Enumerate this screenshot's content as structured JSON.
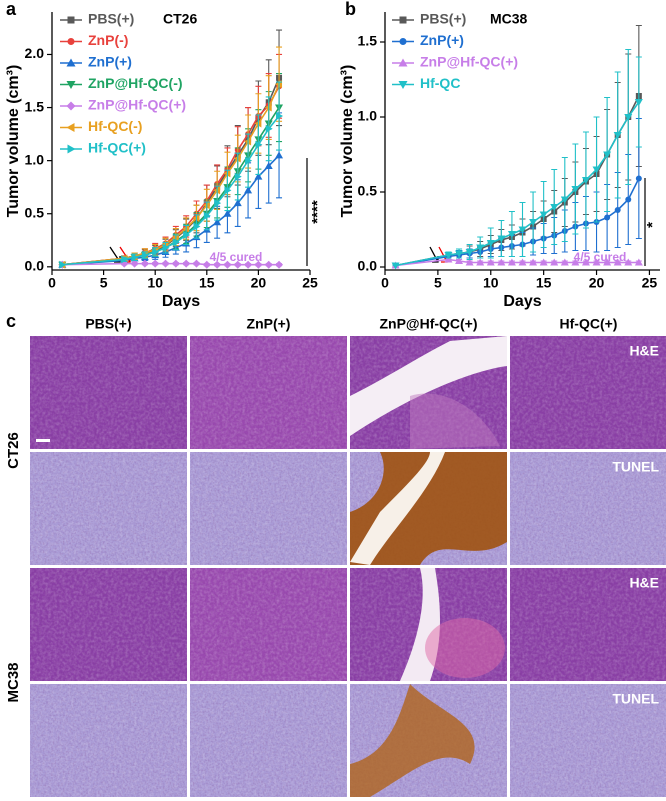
{
  "chart_data": [
    {
      "type": "line",
      "panel_label": "a",
      "annotation": "CT26",
      "cured_label": "4/5 cured",
      "significance": "****",
      "x_label": "Days",
      "y_label": "Tumor volume (cm³)",
      "xlim": [
        0,
        25
      ],
      "xticks": [
        0,
        5,
        10,
        15,
        20,
        25
      ],
      "ylim": [
        -0.03,
        2.4
      ],
      "yticks": [
        {
          "value": 0,
          "label": "0.0"
        },
        {
          "value": 0.5,
          "label": "0.5"
        },
        {
          "value": 1,
          "label": "1.0"
        },
        {
          "value": 1.5,
          "label": "1.5"
        },
        {
          "value": 2,
          "label": "2.0"
        }
      ],
      "x": [
        1,
        7,
        8,
        9,
        10,
        11,
        12,
        13,
        14,
        15,
        16,
        17,
        18,
        19,
        20,
        21,
        22
      ],
      "series": [
        {
          "name": "PBS(+)",
          "color": "#595959",
          "marker": "square",
          "values": [
            0.02,
            0.08,
            0.1,
            0.12,
            0.15,
            0.2,
            0.27,
            0.35,
            0.45,
            0.6,
            0.75,
            0.9,
            1.05,
            1.2,
            1.4,
            1.55,
            1.78
          ],
          "errors": [
            0,
            0.02,
            0.03,
            0.04,
            0.05,
            0.06,
            0.08,
            0.1,
            0.13,
            0.17,
            0.2,
            0.24,
            0.28,
            0.3,
            0.35,
            0.4,
            0.45
          ]
        },
        {
          "name": "ZnP(-)",
          "color": "#e8413c",
          "marker": "circle",
          "values": [
            0.02,
            0.08,
            0.1,
            0.13,
            0.17,
            0.22,
            0.3,
            0.38,
            0.5,
            0.62,
            0.78,
            0.92,
            1.1,
            1.25,
            1.42,
            1.52,
            1.7
          ],
          "errors": [
            0,
            0.02,
            0.03,
            0.04,
            0.05,
            0.06,
            0.08,
            0.1,
            0.12,
            0.15,
            0.18,
            0.2,
            0.22,
            0.25,
            0.28,
            0.3,
            0.3
          ]
        },
        {
          "name": "ZnP(+)",
          "color": "#1f6fd0",
          "marker": "triangle-up",
          "values": [
            0.02,
            0.06,
            0.08,
            0.09,
            0.11,
            0.14,
            0.18,
            0.22,
            0.28,
            0.35,
            0.42,
            0.5,
            0.6,
            0.72,
            0.85,
            0.95,
            1.05
          ],
          "errors": [
            0,
            0.02,
            0.02,
            0.03,
            0.04,
            0.05,
            0.06,
            0.08,
            0.1,
            0.12,
            0.15,
            0.18,
            0.22,
            0.26,
            0.3,
            0.35,
            0.4
          ]
        },
        {
          "name": "ZnP@Hf-QC(-)",
          "color": "#1fa463",
          "marker": "triangle-down",
          "values": [
            0.02,
            0.07,
            0.09,
            0.11,
            0.14,
            0.18,
            0.24,
            0.31,
            0.4,
            0.5,
            0.62,
            0.75,
            0.9,
            1.05,
            1.2,
            1.35,
            1.5
          ],
          "errors": [
            0,
            0.02,
            0.03,
            0.03,
            0.04,
            0.05,
            0.07,
            0.09,
            0.11,
            0.13,
            0.16,
            0.19,
            0.22,
            0.25,
            0.28,
            0.3,
            0.32
          ]
        },
        {
          "name": "ZnP@Hf-QC(+)",
          "color": "#c77ee8",
          "marker": "diamond",
          "values": [
            0.02,
            0.03,
            0.03,
            0.03,
            0.03,
            0.03,
            0.03,
            0.03,
            0.03,
            0.02,
            0.02,
            0.02,
            0.02,
            0.02,
            0.02,
            0.02,
            0.02
          ],
          "errors": [
            0,
            0.01,
            0.01,
            0.01,
            0.01,
            0.01,
            0.01,
            0.01,
            0.01,
            0.01,
            0.01,
            0.01,
            0.01,
            0.01,
            0.01,
            0.01,
            0.01
          ]
        },
        {
          "name": "Hf-QC(-)",
          "color": "#e8a020",
          "marker": "triangle-left",
          "values": [
            0.02,
            0.08,
            0.1,
            0.13,
            0.16,
            0.21,
            0.28,
            0.36,
            0.46,
            0.58,
            0.72,
            0.88,
            1.02,
            1.18,
            1.35,
            1.5,
            1.72
          ],
          "errors": [
            0,
            0.02,
            0.03,
            0.04,
            0.05,
            0.06,
            0.08,
            0.1,
            0.12,
            0.15,
            0.18,
            0.2,
            0.22,
            0.25,
            0.28,
            0.3,
            0.35
          ]
        },
        {
          "name": "Hf-QC(+)",
          "color": "#20c0c8",
          "marker": "triangle-right",
          "values": [
            0.02,
            0.07,
            0.09,
            0.11,
            0.14,
            0.18,
            0.23,
            0.3,
            0.38,
            0.48,
            0.6,
            0.72,
            0.85,
            1.0,
            1.15,
            1.3,
            1.42
          ],
          "errors": [
            0,
            0.02,
            0.03,
            0.03,
            0.04,
            0.05,
            0.07,
            0.09,
            0.11,
            0.13,
            0.16,
            0.19,
            0.22,
            0.25,
            0.28,
            0.3,
            0.32
          ]
        }
      ]
    },
    {
      "type": "line",
      "panel_label": "b",
      "annotation": "MC38",
      "cured_label": "4/5 cured",
      "significance": "*",
      "x_label": "Days",
      "y_label": "Tumor volume (cm³)",
      "xlim": [
        0,
        26
      ],
      "xticks": [
        0,
        5,
        10,
        15,
        20,
        25
      ],
      "ylim": [
        -0.02,
        1.7
      ],
      "yticks": [
        {
          "value": 0,
          "label": "0.0"
        },
        {
          "value": 0.5,
          "label": "0.5"
        },
        {
          "value": 1,
          "label": "1.0"
        },
        {
          "value": 1.5,
          "label": "1.5"
        }
      ],
      "x": [
        1,
        6,
        7,
        8,
        9,
        10,
        11,
        12,
        13,
        14,
        15,
        16,
        17,
        18,
        19,
        20,
        21,
        22,
        23,
        24
      ],
      "series": [
        {
          "name": "PBS(+)",
          "color": "#595959",
          "marker": "square",
          "values": [
            0.01,
            0.08,
            0.09,
            0.1,
            0.12,
            0.15,
            0.18,
            0.2,
            0.23,
            0.27,
            0.32,
            0.37,
            0.43,
            0.5,
            0.57,
            0.62,
            0.75,
            0.88,
            1.0,
            1.14
          ],
          "errors": [
            0,
            0.02,
            0.03,
            0.04,
            0.05,
            0.06,
            0.07,
            0.08,
            0.09,
            0.1,
            0.12,
            0.14,
            0.16,
            0.2,
            0.22,
            0.25,
            0.3,
            0.35,
            0.42,
            0.47
          ]
        },
        {
          "name": "ZnP(+)",
          "color": "#1f6fd0",
          "marker": "circle",
          "values": [
            0.01,
            0.07,
            0.08,
            0.09,
            0.1,
            0.12,
            0.13,
            0.14,
            0.15,
            0.17,
            0.19,
            0.21,
            0.24,
            0.27,
            0.29,
            0.3,
            0.33,
            0.38,
            0.45,
            0.59
          ],
          "errors": [
            0,
            0.02,
            0.03,
            0.03,
            0.04,
            0.05,
            0.06,
            0.07,
            0.08,
            0.09,
            0.1,
            0.12,
            0.14,
            0.16,
            0.18,
            0.2,
            0.22,
            0.25,
            0.3,
            0.4
          ]
        },
        {
          "name": "ZnP@Hf-QC(+)",
          "color": "#c77ee8",
          "marker": "triangle-up",
          "values": [
            0.01,
            0.05,
            0.04,
            0.03,
            0.03,
            0.03,
            0.03,
            0.03,
            0.03,
            0.03,
            0.03,
            0.03,
            0.03,
            0.03,
            0.03,
            0.03,
            0.03,
            0.03,
            0.03,
            0.03
          ],
          "errors": [
            0,
            0.01,
            0.01,
            0.01,
            0.01,
            0.01,
            0.01,
            0.01,
            0.01,
            0.01,
            0.01,
            0.01,
            0.01,
            0.01,
            0.01,
            0.01,
            0.01,
            0.01,
            0.01,
            0.01
          ]
        },
        {
          "name": "Hf-QC",
          "color": "#20c0c8",
          "marker": "triangle-down",
          "values": [
            0.01,
            0.08,
            0.09,
            0.1,
            0.13,
            0.16,
            0.19,
            0.22,
            0.25,
            0.3,
            0.35,
            0.4,
            0.45,
            0.52,
            0.58,
            0.65,
            0.75,
            0.88,
            1.0,
            1.1
          ],
          "errors": [
            0,
            0.02,
            0.03,
            0.05,
            0.07,
            0.1,
            0.12,
            0.15,
            0.18,
            0.2,
            0.22,
            0.25,
            0.28,
            0.3,
            0.32,
            0.35,
            0.38,
            0.42,
            0.45,
            0.3
          ]
        }
      ]
    }
  ],
  "panel_c": {
    "label": "c",
    "columns": [
      "PBS(+)",
      "ZnP(+)",
      "ZnP@Hf-QC(+)",
      "Hf-QC(+)"
    ],
    "groups": [
      "CT26",
      "MC38"
    ],
    "stains": [
      "H&E",
      "TUNEL"
    ]
  }
}
